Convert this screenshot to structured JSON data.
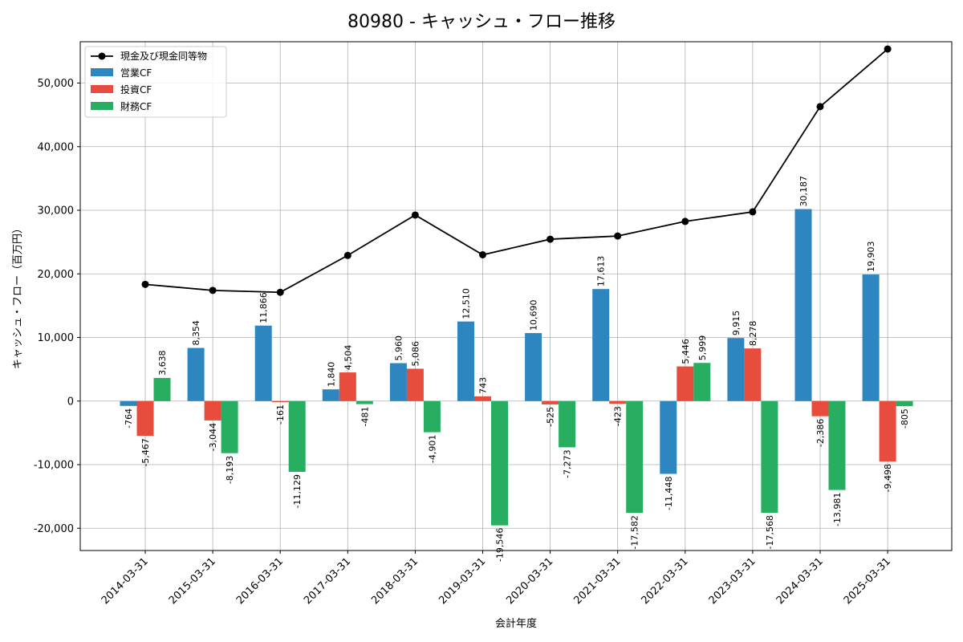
{
  "chart_data": {
    "type": "bar",
    "title": "80980 - キャッシュ・フロー推移",
    "xlabel": "会計年度",
    "ylabel": "キャッシュ・フロー（百万円）",
    "ylim": [
      -23500,
      56500
    ],
    "yticks": [
      -20000,
      -10000,
      0,
      10000,
      20000,
      30000,
      40000,
      50000
    ],
    "ytick_labels": [
      "-20,000",
      "-10,000",
      "0",
      "10,000",
      "20,000",
      "30,000",
      "40,000",
      "50,000"
    ],
    "grid": true,
    "legend_position": "top-left",
    "categories": [
      "2014-03-31",
      "2015-03-31",
      "2016-03-31",
      "2017-03-31",
      "2018-03-31",
      "2019-03-31",
      "2020-03-31",
      "2021-03-31",
      "2022-03-31",
      "2023-03-31",
      "2024-03-31",
      "2025-03-31"
    ],
    "series": [
      {
        "name": "営業CF",
        "kind": "bar",
        "color": "#2e86c1",
        "values": [
          -764,
          8354,
          11866,
          1840,
          5960,
          12510,
          10690,
          17613,
          -11448,
          9915,
          30187,
          19903
        ],
        "labels": [
          "-764",
          "8,354",
          "11,866",
          "1,840",
          "5,960",
          "12,510",
          "10,690",
          "17,613",
          "-11,448",
          "9,915",
          "30,187",
          "19,903"
        ]
      },
      {
        "name": "投資CF",
        "kind": "bar",
        "color": "#e74c3c",
        "values": [
          -5467,
          -3044,
          -161,
          4504,
          5086,
          743,
          -525,
          -423,
          5446,
          8278,
          -2386,
          -9498
        ],
        "labels": [
          "-5,467",
          "-3,044",
          "-161",
          "4,504",
          "5,086",
          "743",
          "-525",
          "-423",
          "5,446",
          "8,278",
          "-2,386",
          "-9,498"
        ]
      },
      {
        "name": "財務CF",
        "kind": "bar",
        "color": "#27ae60",
        "values": [
          3638,
          -8193,
          -11129,
          -481,
          -4901,
          -19546,
          -7273,
          -17582,
          5999,
          -17568,
          -13981,
          -805
        ],
        "labels": [
          "3,638",
          "-8,193",
          "-11,129",
          "-481",
          "-4,901",
          "-19,546",
          "-7,273",
          "-17,582",
          "5,999",
          "-17,568",
          "-13,981",
          "-805"
        ]
      },
      {
        "name": "現金及び現金同等物",
        "kind": "line",
        "color": "#000000",
        "values": [
          18350,
          17400,
          17100,
          22900,
          29250,
          23000,
          25450,
          25950,
          28250,
          29750,
          46300,
          55350
        ]
      }
    ]
  }
}
